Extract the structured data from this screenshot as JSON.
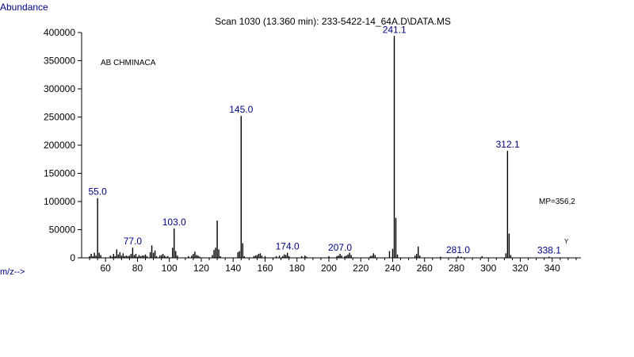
{
  "chart_data": {
    "type": "bar",
    "title": "Scan 1030 (13.360 min): 233-5422-14_64A.D\\DATA.MS",
    "ylabel": "Abundance",
    "xlabel": "m/z-->",
    "annotation_compound": "AB CHMINACA",
    "annotation_mp": "MP=356,2",
    "annotation_mark": "Y",
    "xlim": [
      45,
      358
    ],
    "ylim": [
      0,
      400000
    ],
    "x_ticks": [
      60,
      80,
      100,
      120,
      140,
      160,
      180,
      200,
      220,
      240,
      260,
      280,
      300,
      320,
      340
    ],
    "y_ticks": [
      0,
      50000,
      100000,
      150000,
      200000,
      250000,
      300000,
      350000,
      400000
    ],
    "peak_labels": [
      {
        "x": 55.0,
        "label": "55.0"
      },
      {
        "x": 77.0,
        "label": "77.0"
      },
      {
        "x": 103.0,
        "label": "103.0"
      },
      {
        "x": 145.0,
        "label": "145.0"
      },
      {
        "x": 174.0,
        "label": "174.0"
      },
      {
        "x": 207.0,
        "label": "207.0"
      },
      {
        "x": 241.1,
        "label": "241.1"
      },
      {
        "x": 281.0,
        "label": "281.0"
      },
      {
        "x": 312.1,
        "label": "312.1"
      },
      {
        "x": 338.1,
        "label": "338.1"
      }
    ],
    "peaks": [
      [
        50,
        3000
      ],
      [
        51,
        7000
      ],
      [
        52,
        3000
      ],
      [
        53,
        9000
      ],
      [
        54,
        4000
      ],
      [
        55,
        106000
      ],
      [
        56,
        9000
      ],
      [
        57,
        5000
      ],
      [
        63,
        4000
      ],
      [
        64,
        2000
      ],
      [
        65,
        7000
      ],
      [
        66,
        3000
      ],
      [
        67,
        15000
      ],
      [
        68,
        6000
      ],
      [
        69,
        10000
      ],
      [
        70,
        4000
      ],
      [
        71,
        8000
      ],
      [
        72,
        3000
      ],
      [
        73,
        4000
      ],
      [
        74,
        3000
      ],
      [
        75,
        4000
      ],
      [
        76,
        7000
      ],
      [
        77,
        18000
      ],
      [
        78,
        5000
      ],
      [
        79,
        7000
      ],
      [
        80,
        2000
      ],
      [
        81,
        5000
      ],
      [
        82,
        3000
      ],
      [
        83,
        4000
      ],
      [
        84,
        4000
      ],
      [
        85,
        6000
      ],
      [
        86,
        3000
      ],
      [
        88,
        10000
      ],
      [
        89,
        22000
      ],
      [
        90,
        9000
      ],
      [
        91,
        13000
      ],
      [
        92,
        3000
      ],
      [
        94,
        4000
      ],
      [
        95,
        5000
      ],
      [
        96,
        7000
      ],
      [
        97,
        4000
      ],
      [
        98,
        2000
      ],
      [
        99,
        3000
      ],
      [
        102,
        18000
      ],
      [
        103,
        52000
      ],
      [
        104,
        12000
      ],
      [
        105,
        4000
      ],
      [
        112,
        3000
      ],
      [
        114,
        4000
      ],
      [
        115,
        7000
      ],
      [
        116,
        11000
      ],
      [
        117,
        5000
      ],
      [
        118,
        4000
      ],
      [
        119,
        2000
      ],
      [
        127,
        5000
      ],
      [
        128,
        14000
      ],
      [
        129,
        18000
      ],
      [
        130,
        66000
      ],
      [
        131,
        15000
      ],
      [
        132,
        3000
      ],
      [
        143,
        10000
      ],
      [
        144,
        12000
      ],
      [
        145,
        252000
      ],
      [
        146,
        26000
      ],
      [
        147,
        3000
      ],
      [
        153,
        3000
      ],
      [
        154,
        4000
      ],
      [
        155,
        5000
      ],
      [
        156,
        7000
      ],
      [
        157,
        8000
      ],
      [
        158,
        4000
      ],
      [
        160,
        3000
      ],
      [
        167,
        3000
      ],
      [
        169,
        4000
      ],
      [
        171,
        3000
      ],
      [
        172,
        6000
      ],
      [
        173,
        5000
      ],
      [
        174,
        9000
      ],
      [
        175,
        3000
      ],
      [
        183,
        3000
      ],
      [
        185,
        4000
      ],
      [
        186,
        2000
      ],
      [
        200,
        3000
      ],
      [
        205,
        3000
      ],
      [
        206,
        4000
      ],
      [
        207,
        7000
      ],
      [
        208,
        4000
      ],
      [
        210,
        3000
      ],
      [
        211,
        4000
      ],
      [
        212,
        6000
      ],
      [
        213,
        9000
      ],
      [
        214,
        5000
      ],
      [
        226,
        3000
      ],
      [
        227,
        4000
      ],
      [
        228,
        8000
      ],
      [
        229,
        5000
      ],
      [
        238,
        12000
      ],
      [
        240,
        16000
      ],
      [
        241,
        394000
      ],
      [
        242,
        71000
      ],
      [
        243,
        6000
      ],
      [
        254,
        4000
      ],
      [
        255,
        7000
      ],
      [
        256,
        20000
      ],
      [
        257,
        4000
      ],
      [
        270,
        2000
      ],
      [
        281,
        3000
      ],
      [
        283,
        2000
      ],
      [
        296,
        3000
      ],
      [
        311,
        8000
      ],
      [
        312,
        190000
      ],
      [
        313,
        43000
      ],
      [
        314,
        5000
      ],
      [
        338,
        2000
      ]
    ]
  }
}
